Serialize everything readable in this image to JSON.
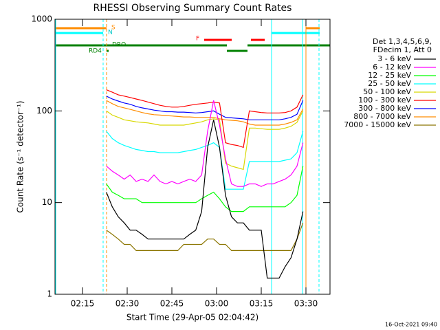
{
  "chart_data": {
    "type": "line",
    "title": "RHESSI Observing Summary Count Rates",
    "x_label": "Start Time (29-Apr-05 02:04:42)",
    "y_label": "Count Rate (s⁻¹ detector⁻¹)",
    "legend_title": [
      "Det 1,3,4,5,6,9,",
      "FDecim 1, Att 0"
    ],
    "footer": "16-Oct-2021 09:40",
    "annotations": [
      "S",
      "N",
      "F",
      "DRO",
      "RD4"
    ],
    "y_log": true,
    "legend": "right",
    "xlim": [
      125.77,
      218.08
    ],
    "xticks": [
      {
        "value": 135,
        "label": "02:15"
      },
      {
        "value": 150,
        "label": "02:30"
      },
      {
        "value": 165,
        "label": "02:45"
      },
      {
        "value": 180,
        "label": "03:00"
      },
      {
        "value": 195,
        "label": "03:15"
      },
      {
        "value": 210,
        "label": "03:30"
      }
    ],
    "ylim": [
      1,
      1000
    ],
    "yticks": [
      1,
      10,
      100,
      1000
    ],
    "x": [
      143,
      145,
      147,
      149,
      151,
      153,
      155,
      157,
      159,
      161,
      163,
      165,
      167,
      169,
      171,
      173,
      175,
      177,
      179,
      181,
      183,
      185,
      187,
      189,
      191,
      193,
      195,
      197,
      199,
      201,
      203,
      205,
      207,
      209
    ],
    "series": [
      {
        "name": "3 - 6 keV",
        "color": "#000000",
        "values": [
          13,
          9,
          7,
          6,
          5,
          5,
          4.5,
          4,
          4,
          4,
          4,
          4,
          4,
          4,
          4.5,
          5,
          8,
          40,
          80,
          40,
          12,
          7,
          6,
          6,
          5,
          5,
          5,
          1.5,
          1.5,
          1.5,
          2,
          2.5,
          4,
          8
        ]
      },
      {
        "name": "6 - 12 keV",
        "color": "#ff00ff",
        "values": [
          25,
          22,
          20,
          18,
          20,
          17,
          18,
          17,
          20,
          17,
          16,
          17,
          16,
          17,
          18,
          17,
          20,
          60,
          130,
          70,
          30,
          16,
          15,
          15,
          16,
          16,
          15,
          16,
          16,
          17,
          18,
          20,
          25,
          45
        ]
      },
      {
        "name": "12 - 25 keV",
        "color": "#00ff00",
        "values": [
          16,
          13,
          12,
          11,
          11,
          11,
          10,
          10,
          10,
          10,
          10,
          10,
          10,
          10,
          10,
          10,
          11,
          12,
          13,
          11,
          9,
          8,
          8,
          8,
          9,
          9,
          9,
          9,
          9,
          9,
          9,
          10,
          12,
          25
        ]
      },
      {
        "name": "25 - 50 keV",
        "color": "#00ffff",
        "values": [
          60,
          50,
          45,
          42,
          40,
          38,
          37,
          36,
          36,
          35,
          35,
          35,
          35,
          36,
          37,
          38,
          40,
          42,
          45,
          40,
          14,
          14,
          14,
          14,
          28,
          28,
          28,
          28,
          28,
          28,
          29,
          30,
          35,
          60
        ]
      },
      {
        "name": "50 - 100 keV",
        "color": "#d8d800",
        "values": [
          100,
          90,
          85,
          80,
          78,
          76,
          75,
          74,
          72,
          70,
          70,
          70,
          70,
          70,
          72,
          74,
          76,
          80,
          82,
          80,
          27,
          25,
          24,
          23,
          65,
          65,
          64,
          63,
          63,
          63,
          65,
          68,
          75,
          100
        ]
      },
      {
        "name": "100 - 300 keV",
        "color": "#ff0000",
        "values": [
          170,
          160,
          150,
          145,
          140,
          135,
          130,
          125,
          120,
          115,
          112,
          110,
          110,
          112,
          115,
          118,
          120,
          122,
          125,
          122,
          45,
          43,
          42,
          40,
          100,
          98,
          96,
          95,
          95,
          95,
          96,
          100,
          110,
          150
        ]
      },
      {
        "name": "300 - 800 keV",
        "color": "#0000ff",
        "values": [
          145,
          135,
          128,
          122,
          118,
          112,
          108,
          105,
          102,
          100,
          98,
          98,
          97,
          97,
          96,
          95,
          96,
          98,
          100,
          92,
          85,
          84,
          83,
          82,
          80,
          80,
          80,
          80,
          80,
          80,
          82,
          85,
          92,
          130
        ]
      },
      {
        "name": "800 - 7000 keV",
        "color": "#ff8c00",
        "values": [
          130,
          120,
          112,
          108,
          104,
          100,
          96,
          93,
          91,
          90,
          89,
          88,
          87,
          86,
          86,
          85,
          85,
          85,
          85,
          82,
          80,
          79,
          78,
          76,
          72,
          70,
          70,
          70,
          70,
          70,
          72,
          75,
          80,
          105
        ]
      },
      {
        "name": "7000 - 15000 keV",
        "color": "#8b7500",
        "values": [
          5,
          4.5,
          4,
          3.5,
          3.5,
          3,
          3,
          3,
          3,
          3,
          3,
          3,
          3,
          3.5,
          3.5,
          3.5,
          3.5,
          4,
          4,
          3.5,
          3.5,
          3,
          3,
          3,
          3,
          3,
          3,
          3,
          3,
          3,
          3,
          3,
          4,
          6
        ]
      }
    ]
  }
}
